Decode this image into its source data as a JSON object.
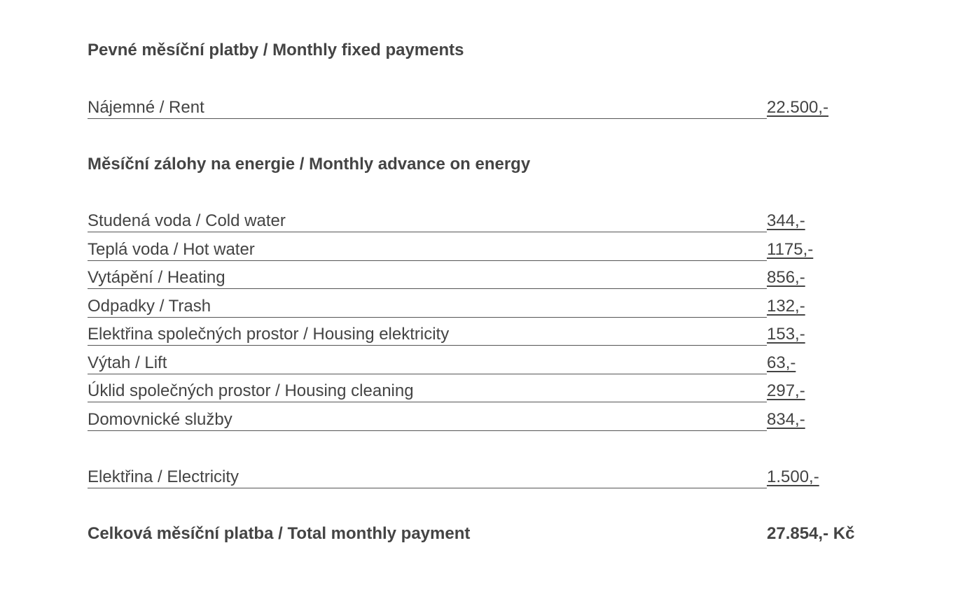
{
  "fixed": {
    "heading": "Pevné měsíční platby / Monthly fixed payments",
    "rows": [
      {
        "label": "Nájemné / Rent",
        "value": "22.500,-"
      }
    ]
  },
  "energy": {
    "heading": "Měsíční zálohy na energie / Monthly advance on energy",
    "rows": [
      {
        "label": "Studená voda / Cold water",
        "value": "344,-"
      },
      {
        "label": "Teplá voda / Hot water",
        "value": "1175,-"
      },
      {
        "label": "Vytápění / Heating",
        "value": "856,-"
      },
      {
        "label": "Odpadky / Trash",
        "value": "132,-"
      },
      {
        "label": "Elektřina společných prostor / Housing elektricity",
        "value": "153,-"
      },
      {
        "label": "Výtah / Lift",
        "value": "63,-"
      },
      {
        "label": "Úklid společných prostor / Housing cleaning",
        "value": "297,-"
      },
      {
        "label": "Domovnické služby",
        "value": "834,-"
      }
    ]
  },
  "electricity": {
    "rows": [
      {
        "label": "Elektřina / Electricity",
        "value": "1.500,-"
      }
    ]
  },
  "total": {
    "label": "Celková měsíční platba / Total monthly payment",
    "value": "27.854,- Kč"
  }
}
